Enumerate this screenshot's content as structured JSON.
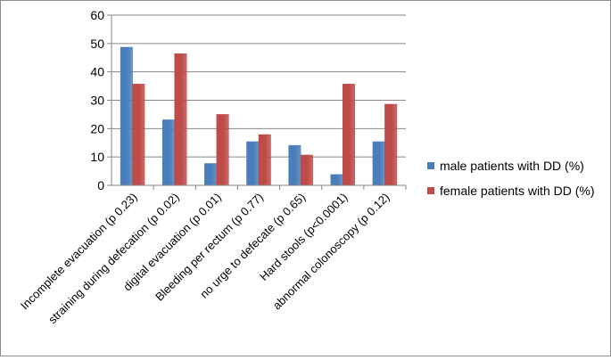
{
  "chart_data": {
    "type": "bar",
    "title": "",
    "xlabel": "",
    "ylabel": "",
    "ylim": [
      0,
      60
    ],
    "yticks": [
      0,
      10,
      20,
      30,
      40,
      50,
      60
    ],
    "grid": true,
    "legend_position": "right",
    "categories": [
      "Incomplete evacuation (p 0.23)",
      "straining during defecation (p 0.02)",
      "digital evacuation (p 0.01)",
      "Bleeding per rectum (p 0.77)",
      "no urge to defecate (p 0.65)",
      "Hard stools (p<0.0001)",
      "abnormal colonoscopy (p 0.12)"
    ],
    "series": [
      {
        "name": "male patients with DD (%)",
        "color": "#4a7ebb",
        "values": [
          48.7,
          23.1,
          7.7,
          15.4,
          14.1,
          3.8,
          15.4
        ]
      },
      {
        "name": "female patients with DD (%)",
        "color": "#be4b48",
        "values": [
          35.7,
          46.4,
          25.0,
          17.9,
          10.7,
          35.7,
          28.6
        ]
      }
    ]
  }
}
